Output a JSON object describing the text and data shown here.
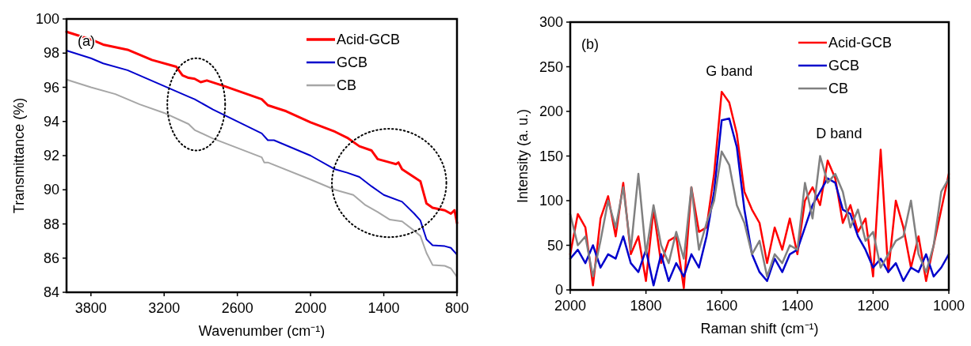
{
  "chart_data": [
    {
      "type": "line",
      "xlabel": "Wavenumber (cm⁻¹)",
      "ylabel": "Transmittance (%)",
      "xlim": [
        4000,
        800
      ],
      "ylim": [
        84,
        100
      ],
      "xticks": [
        3800,
        3200,
        2600,
        2000,
        1400,
        800
      ],
      "yticks": [
        84,
        86,
        88,
        90,
        92,
        94,
        96,
        98,
        100
      ],
      "legend": "top right",
      "annotations": [
        "(a)"
      ],
      "series": [
        {
          "name": "Acid-GCB",
          "color": "#ff0000",
          "x": [
            4000,
            3800,
            3700,
            3500,
            3300,
            3100,
            3050,
            3000,
            2950,
            2900,
            2850,
            2700,
            2400,
            2350,
            2200,
            2000,
            1800,
            1700,
            1600,
            1500,
            1450,
            1350,
            1300,
            1280,
            1250,
            1100,
            1050,
            1000,
            900,
            850,
            820,
            800
          ],
          "values": [
            99.25,
            98.8,
            98.5,
            98.2,
            97.6,
            97.2,
            96.7,
            96.55,
            96.5,
            96.3,
            96.4,
            96.05,
            95.3,
            94.95,
            94.6,
            93.95,
            93.4,
            93.05,
            92.55,
            92.3,
            91.8,
            91.6,
            91.5,
            91.6,
            91.2,
            90.5,
            89.2,
            88.95,
            88.8,
            88.6,
            88.8,
            88.05
          ]
        },
        {
          "name": "GCB",
          "color": "#0000cc",
          "x": [
            4000,
            3800,
            3700,
            3500,
            3000,
            2950,
            2800,
            2400,
            2350,
            2300,
            2000,
            1800,
            1700,
            1600,
            1500,
            1400,
            1250,
            1150,
            1100,
            1050,
            1000,
            900,
            850,
            800
          ],
          "values": [
            98.15,
            97.7,
            97.4,
            97.0,
            95.45,
            95.3,
            94.7,
            93.3,
            92.9,
            92.9,
            92.0,
            91.2,
            91.0,
            90.75,
            90.2,
            89.7,
            89.3,
            88.6,
            88.2,
            87.1,
            86.75,
            86.7,
            86.6,
            86.2
          ]
        },
        {
          "name": "CB",
          "color": "#a6a6a6",
          "x": [
            4000,
            3800,
            3600,
            3400,
            3200,
            3000,
            2950,
            2800,
            2400,
            2380,
            2350,
            2000,
            1800,
            1650,
            1550,
            1450,
            1350,
            1250,
            1150,
            1100,
            1050,
            1000,
            900,
            850,
            800
          ],
          "values": [
            96.45,
            96.0,
            95.6,
            95.0,
            94.5,
            93.85,
            93.5,
            93.0,
            91.9,
            91.6,
            91.6,
            90.6,
            90.0,
            89.7,
            89.1,
            88.7,
            88.25,
            88.15,
            87.6,
            87.3,
            86.3,
            85.6,
            85.55,
            85.4,
            84.9
          ]
        }
      ]
    },
    {
      "type": "line",
      "xlabel": "Raman shift (cm⁻¹)",
      "ylabel": "Intensity (a. u.)",
      "xlim": [
        2000,
        1000
      ],
      "ylim": [
        0,
        300
      ],
      "xticks": [
        2000,
        1800,
        1600,
        1400,
        1200,
        1000
      ],
      "yticks": [
        0,
        50,
        100,
        150,
        200,
        250,
        300
      ],
      "legend": "top right",
      "annotations": [
        "(b)",
        "G band",
        "D band"
      ],
      "x": [
        2000,
        1980,
        1960,
        1940,
        1920,
        1900,
        1880,
        1860,
        1840,
        1820,
        1800,
        1780,
        1760,
        1740,
        1720,
        1700,
        1680,
        1660,
        1640,
        1620,
        1600,
        1580,
        1560,
        1540,
        1520,
        1500,
        1480,
        1460,
        1440,
        1420,
        1400,
        1380,
        1360,
        1340,
        1320,
        1300,
        1280,
        1260,
        1240,
        1220,
        1200,
        1180,
        1160,
        1140,
        1120,
        1100,
        1080,
        1060,
        1040,
        1020,
        1000
      ],
      "series": [
        {
          "name": "Acid-GCB",
          "color": "#ff0000",
          "values": [
            40,
            85,
            70,
            5,
            80,
            105,
            60,
            120,
            40,
            60,
            10,
            90,
            30,
            55,
            60,
            2,
            115,
            65,
            70,
            130,
            222,
            210,
            175,
            110,
            90,
            75,
            30,
            70,
            45,
            80,
            40,
            100,
            115,
            95,
            145,
            125,
            75,
            95,
            65,
            80,
            15,
            157,
            20,
            100,
            70,
            25,
            60,
            10,
            50,
            90,
            130
          ]
        },
        {
          "name": "GCB",
          "color": "#0000cc",
          "values": [
            35,
            45,
            30,
            50,
            25,
            40,
            35,
            60,
            30,
            20,
            45,
            5,
            40,
            10,
            30,
            15,
            40,
            25,
            60,
            110,
            190,
            192,
            160,
            90,
            40,
            20,
            10,
            35,
            20,
            40,
            45,
            70,
            95,
            110,
            125,
            120,
            90,
            85,
            60,
            45,
            25,
            35,
            20,
            30,
            10,
            25,
            20,
            40,
            15,
            25,
            40
          ]
        },
        {
          "name": "CB",
          "color": "#808080",
          "values": [
            85,
            50,
            60,
            15,
            55,
            100,
            70,
            115,
            45,
            130,
            40,
            95,
            50,
            30,
            65,
            35,
            115,
            45,
            75,
            100,
            155,
            140,
            95,
            75,
            40,
            55,
            15,
            40,
            30,
            50,
            45,
            120,
            80,
            150,
            120,
            130,
            110,
            70,
            90,
            55,
            65,
            25,
            40,
            55,
            60,
            100,
            40,
            20,
            50,
            110,
            125
          ]
        }
      ]
    }
  ]
}
